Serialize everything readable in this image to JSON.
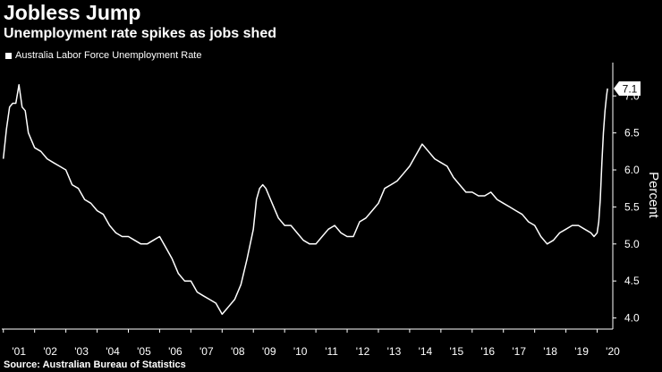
{
  "chart_data": {
    "type": "line",
    "title": "Jobless Jump",
    "subtitle": "Unemployment rate spikes as jobs shed",
    "legend": [
      "Australia Labor Force Unemployment Rate"
    ],
    "ylabel": "Percent",
    "source": "Source: Australian Bureau of Statistics",
    "ylim": [
      3.85,
      7.45
    ],
    "yticks": [
      "4.0",
      "4.5",
      "5.0",
      "5.5",
      "6.0",
      "6.5",
      "7.0"
    ],
    "xticks": [
      "'01",
      "'02",
      "'03",
      "'04",
      "'05",
      "'06",
      "'07",
      "'08",
      "'09",
      "'10",
      "'11",
      "'12",
      "'13",
      "'14",
      "'15",
      "'16",
      "'17",
      "'18",
      "'19",
      "'20"
    ],
    "last_value_label": "7.1",
    "line_color": "#ffffff",
    "background": "#000000",
    "grid": false,
    "x": [
      2001.0,
      2001.1,
      2001.2,
      2001.3,
      2001.4,
      2001.5,
      2001.6,
      2001.7,
      2001.8,
      2001.9,
      2002.0,
      2002.2,
      2002.4,
      2002.6,
      2002.8,
      2003.0,
      2003.2,
      2003.4,
      2003.6,
      2003.8,
      2004.0,
      2004.2,
      2004.4,
      2004.6,
      2004.8,
      2005.0,
      2005.2,
      2005.4,
      2005.6,
      2005.8,
      2006.0,
      2006.2,
      2006.4,
      2006.6,
      2006.8,
      2007.0,
      2007.2,
      2007.4,
      2007.6,
      2007.8,
      2008.0,
      2008.2,
      2008.4,
      2008.6,
      2008.8,
      2009.0,
      2009.1,
      2009.2,
      2009.3,
      2009.4,
      2009.5,
      2009.6,
      2009.8,
      2010.0,
      2010.2,
      2010.4,
      2010.6,
      2010.8,
      2011.0,
      2011.2,
      2011.4,
      2011.6,
      2011.8,
      2012.0,
      2012.2,
      2012.4,
      2012.6,
      2012.8,
      2013.0,
      2013.2,
      2013.4,
      2013.6,
      2013.8,
      2014.0,
      2014.2,
      2014.4,
      2014.6,
      2014.8,
      2015.0,
      2015.2,
      2015.4,
      2015.6,
      2015.8,
      2016.0,
      2016.2,
      2016.4,
      2016.6,
      2016.8,
      2017.0,
      2017.2,
      2017.4,
      2017.6,
      2017.8,
      2018.0,
      2018.2,
      2018.4,
      2018.6,
      2018.8,
      2019.0,
      2019.2,
      2019.4,
      2019.6,
      2019.8,
      2019.9,
      2020.0,
      2020.05,
      2020.1,
      2020.15,
      2020.2,
      2020.25,
      2020.3,
      2020.33
    ],
    "values": [
      6.15,
      6.55,
      6.85,
      6.9,
      6.9,
      7.15,
      6.85,
      6.8,
      6.5,
      6.4,
      6.3,
      6.25,
      6.15,
      6.1,
      6.05,
      6.0,
      5.8,
      5.75,
      5.6,
      5.55,
      5.45,
      5.4,
      5.25,
      5.15,
      5.1,
      5.1,
      5.05,
      5.0,
      5.0,
      5.05,
      5.1,
      4.95,
      4.8,
      4.6,
      4.5,
      4.5,
      4.35,
      4.3,
      4.25,
      4.2,
      4.05,
      4.15,
      4.25,
      4.45,
      4.8,
      5.2,
      5.6,
      5.75,
      5.8,
      5.75,
      5.65,
      5.55,
      5.35,
      5.25,
      5.25,
      5.15,
      5.05,
      5.0,
      5.0,
      5.1,
      5.2,
      5.25,
      5.15,
      5.1,
      5.1,
      5.3,
      5.35,
      5.45,
      5.55,
      5.75,
      5.8,
      5.85,
      5.95,
      6.05,
      6.2,
      6.35,
      6.25,
      6.15,
      6.1,
      6.05,
      5.9,
      5.8,
      5.7,
      5.7,
      5.65,
      5.65,
      5.7,
      5.6,
      5.55,
      5.5,
      5.45,
      5.4,
      5.3,
      5.25,
      5.1,
      5.0,
      5.05,
      5.15,
      5.2,
      5.25,
      5.25,
      5.2,
      5.15,
      5.1,
      5.15,
      5.3,
      5.6,
      6.1,
      6.5,
      6.8,
      7.0,
      7.1
    ]
  }
}
